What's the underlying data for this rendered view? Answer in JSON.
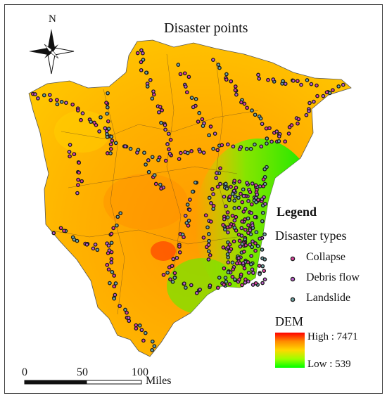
{
  "map": {
    "title": "Disaster points",
    "north_label": "N"
  },
  "legend": {
    "heading": "Legend",
    "subheading": "Disaster types",
    "items": [
      {
        "label": "Collapse",
        "marker_color": "#e040a0"
      },
      {
        "label": "Debris flow",
        "marker_color": "#c060d0"
      },
      {
        "label": "Landslide",
        "marker_color": "#70a8a8"
      }
    ]
  },
  "dem": {
    "title": "DEM",
    "high_label": "High : 7471",
    "low_label": "Low : 539",
    "high_color": "#ff0000",
    "low_color": "#00ff00"
  },
  "scale_bar": {
    "ticks": [
      "0",
      "50",
      "100"
    ],
    "unit": "Miles"
  }
}
